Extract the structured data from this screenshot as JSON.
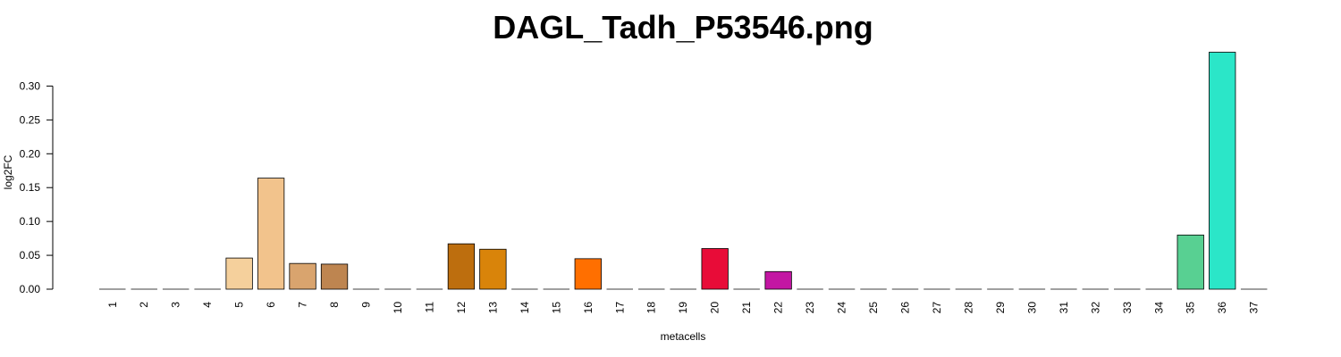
{
  "chart_data": {
    "type": "bar",
    "title": "DAGL_Tadh_P53546.png",
    "xlabel": "metacells",
    "ylabel": "log2FC",
    "ylim": [
      0,
      0.35
    ],
    "yticks": [
      0.0,
      0.05,
      0.1,
      0.15,
      0.2,
      0.25,
      0.3
    ],
    "ytick_labels": [
      "0.00",
      "0.05",
      "0.10",
      "0.15",
      "0.20",
      "0.25",
      "0.30"
    ],
    "categories": [
      "1",
      "2",
      "3",
      "4",
      "5",
      "6",
      "7",
      "8",
      "9",
      "10",
      "11",
      "12",
      "13",
      "14",
      "15",
      "16",
      "17",
      "18",
      "19",
      "20",
      "21",
      "22",
      "23",
      "24",
      "25",
      "26",
      "27",
      "28",
      "29",
      "30",
      "31",
      "32",
      "33",
      "34",
      "35",
      "36",
      "37"
    ],
    "values": [
      0,
      0,
      0,
      0,
      0.046,
      0.164,
      0.038,
      0.037,
      0,
      0,
      0,
      0.067,
      0.059,
      0,
      0,
      0.045,
      0,
      0,
      0,
      0.06,
      0,
      0.026,
      0,
      0,
      0,
      0,
      0,
      0,
      0,
      0,
      0,
      0,
      0,
      0,
      0.08,
      0.35,
      0
    ],
    "colors": [
      "#ffffff",
      "#ffffff",
      "#ffffff",
      "#ffffff",
      "#f5d09c",
      "#f2c38c",
      "#d9a46e",
      "#be8550",
      "#ffffff",
      "#ffffff",
      "#ffffff",
      "#bd6e0e",
      "#d9840a",
      "#ffffff",
      "#ffffff",
      "#ff6f00",
      "#ffffff",
      "#ffffff",
      "#ffffff",
      "#e80c38",
      "#ffffff",
      "#c316a3",
      "#ffffff",
      "#ffffff",
      "#ffffff",
      "#ffffff",
      "#ffffff",
      "#ffffff",
      "#ffffff",
      "#ffffff",
      "#ffffff",
      "#ffffff",
      "#ffffff",
      "#ffffff",
      "#58d092",
      "#2be6c8",
      "#ffffff"
    ],
    "grid": false,
    "legend": "none"
  }
}
